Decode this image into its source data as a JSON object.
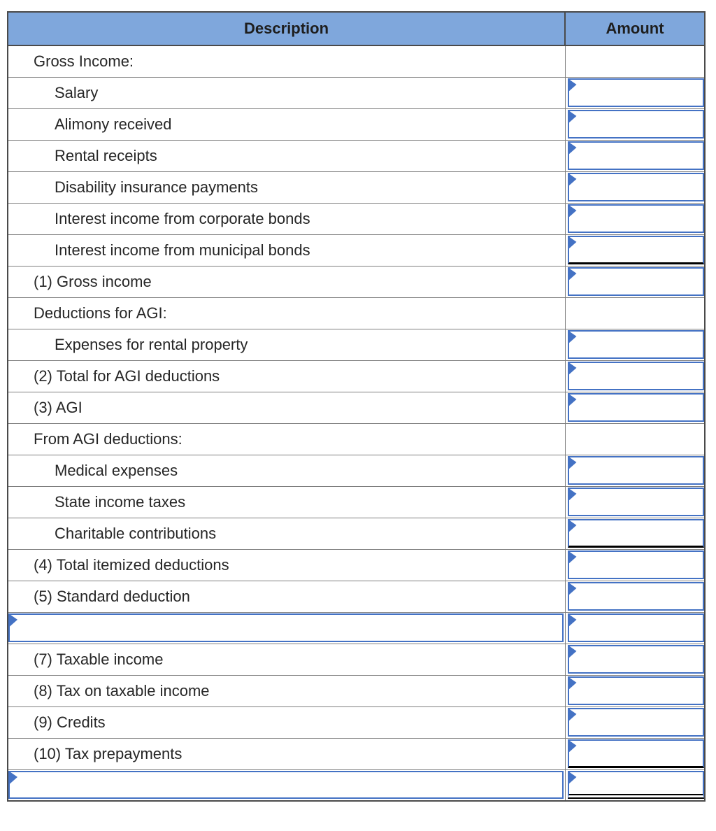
{
  "header": {
    "description": "Description",
    "amount": "Amount"
  },
  "rows": [
    {
      "label": "Gross Income:",
      "level": 1,
      "desc_box": false,
      "amt_box": false,
      "underline": "none"
    },
    {
      "label": "Salary",
      "level": 2,
      "desc_box": false,
      "amt_box": true,
      "underline": "none"
    },
    {
      "label": "Alimony received",
      "level": 2,
      "desc_box": false,
      "amt_box": true,
      "underline": "none"
    },
    {
      "label": "Rental receipts",
      "level": 2,
      "desc_box": false,
      "amt_box": true,
      "underline": "none"
    },
    {
      "label": "Disability insurance payments",
      "level": 2,
      "desc_box": false,
      "amt_box": true,
      "underline": "none"
    },
    {
      "label": "Interest income from corporate bonds",
      "level": 2,
      "desc_box": false,
      "amt_box": true,
      "underline": "none"
    },
    {
      "label": "Interest income from municipal bonds",
      "level": 2,
      "desc_box": false,
      "amt_box": true,
      "underline": "single"
    },
    {
      "label": "(1) Gross income",
      "level": 1,
      "desc_box": false,
      "amt_box": true,
      "underline": "none"
    },
    {
      "label": "Deductions for AGI:",
      "level": 1,
      "desc_box": false,
      "amt_box": false,
      "underline": "none"
    },
    {
      "label": "Expenses for rental property",
      "level": 2,
      "desc_box": false,
      "amt_box": true,
      "underline": "none"
    },
    {
      "label": "(2) Total for AGI deductions",
      "level": 1,
      "desc_box": false,
      "amt_box": true,
      "underline": "none"
    },
    {
      "label": "(3) AGI",
      "level": 1,
      "desc_box": false,
      "amt_box": true,
      "underline": "none"
    },
    {
      "label": "From AGI deductions:",
      "level": 1,
      "desc_box": false,
      "amt_box": false,
      "underline": "none"
    },
    {
      "label": "Medical expenses",
      "level": 2,
      "desc_box": false,
      "amt_box": true,
      "underline": "none"
    },
    {
      "label": "State income taxes",
      "level": 2,
      "desc_box": false,
      "amt_box": true,
      "underline": "none"
    },
    {
      "label": "Charitable contributions",
      "level": 2,
      "desc_box": false,
      "amt_box": true,
      "underline": "single"
    },
    {
      "label": "(4) Total itemized deductions",
      "level": 1,
      "desc_box": false,
      "amt_box": true,
      "underline": "none"
    },
    {
      "label": "(5) Standard deduction",
      "level": 1,
      "desc_box": false,
      "amt_box": true,
      "underline": "none"
    },
    {
      "label": "",
      "level": 1,
      "desc_box": true,
      "amt_box": true,
      "underline": "none"
    },
    {
      "label": "(7) Taxable income",
      "level": 1,
      "desc_box": false,
      "amt_box": true,
      "underline": "none"
    },
    {
      "label": "(8) Tax on taxable income",
      "level": 1,
      "desc_box": false,
      "amt_box": true,
      "underline": "none"
    },
    {
      "label": "(9) Credits",
      "level": 1,
      "desc_box": false,
      "amt_box": true,
      "underline": "none"
    },
    {
      "label": "(10) Tax prepayments",
      "level": 1,
      "desc_box": false,
      "amt_box": true,
      "underline": "single"
    },
    {
      "label": "",
      "level": 1,
      "desc_box": true,
      "amt_box": true,
      "underline": "double"
    }
  ],
  "colors": {
    "header_bg": "#7FA7DC",
    "input_border": "#4472C4",
    "grid_border": "#7F7F7F",
    "outer_border": "#4A4A4A",
    "underline": "#000000",
    "text": "#262626",
    "header_text": "#1E1E1E"
  }
}
